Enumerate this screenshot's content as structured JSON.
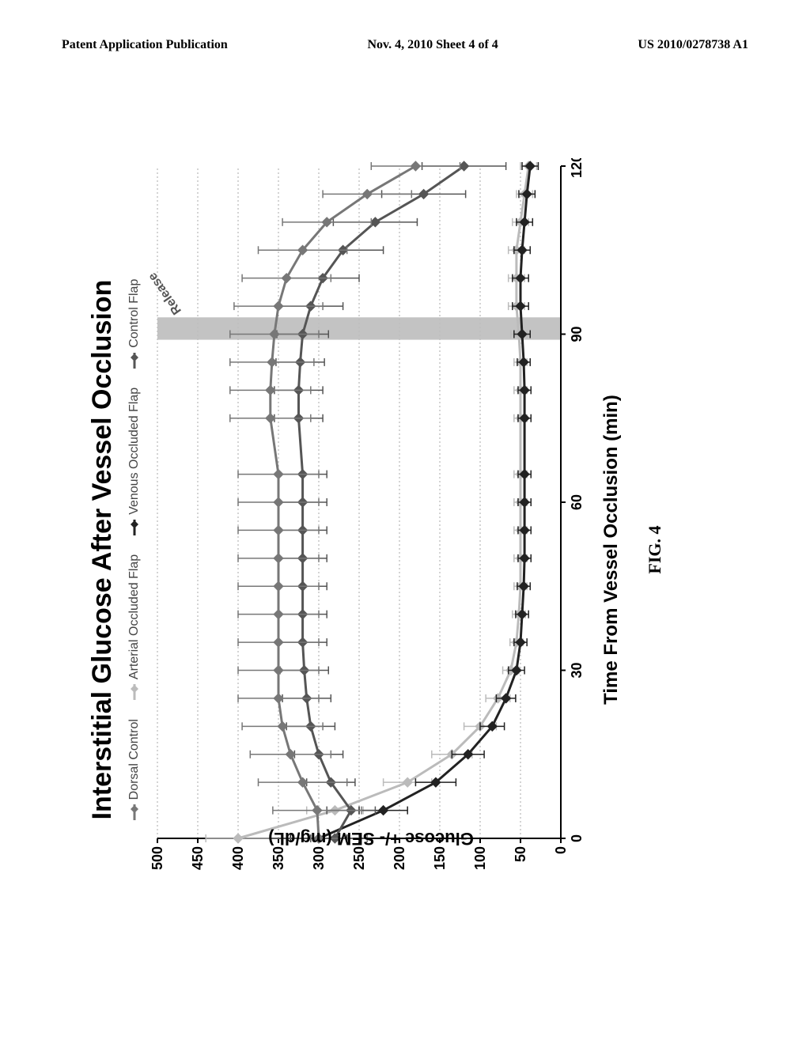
{
  "header": {
    "left": "Patent Application Publication",
    "center": "Nov. 4, 2010  Sheet 4 of 4",
    "right": "US 2010/0278738 A1"
  },
  "figure": {
    "caption": "FIG. 4",
    "chart": {
      "type": "line",
      "title": "Interstitial Glucose After Vessel Occlusion",
      "x_label": "Time From Vessel Occlusion (min)",
      "y_label": "Glucose +/- SEM (mg/dL)",
      "xlim": [
        0,
        120
      ],
      "ylim": [
        0,
        500
      ],
      "xtick_step": 30,
      "ytick_step": 50,
      "background_color": "#ffffff",
      "grid_color": "#aaaaaa",
      "grid_dash": "2,3",
      "axis_color": "#000000",
      "tick_fontsize": 18,
      "title_fontsize": 34,
      "label_fontsize": 24,
      "release_bar": {
        "x_start": 89,
        "x_end": 93,
        "fill": "#bdbdbd",
        "label": "Release",
        "label_rot": -35
      },
      "legend": [
        {
          "key": "dorsal",
          "label": "Dorsal Control",
          "color": "#777777",
          "marker": "diamond"
        },
        {
          "key": "arterial",
          "label": "Arterial Occluded Flap",
          "color": "#bbbbbb",
          "marker": "diamond"
        },
        {
          "key": "venous",
          "label": "Venous Occluded Flap",
          "color": "#222222",
          "marker": "diamond"
        },
        {
          "key": "control",
          "label": "Control Flap",
          "color": "#555555",
          "marker": "diamond"
        }
      ],
      "series": {
        "dorsal": {
          "color": "#777777",
          "line_width": 3,
          "marker": "diamond",
          "marker_size": 8,
          "x": [
            0,
            5,
            10,
            15,
            20,
            25,
            30,
            35,
            40,
            45,
            50,
            55,
            60,
            65,
            75,
            80,
            85,
            90,
            95,
            100,
            105,
            110,
            115,
            120
          ],
          "y": [
            300,
            302,
            320,
            335,
            345,
            350,
            350,
            350,
            350,
            350,
            350,
            350,
            350,
            350,
            360,
            360,
            358,
            355,
            350,
            340,
            320,
            290,
            240,
            180
          ],
          "err": [
            60,
            55,
            55,
            50,
            50,
            50,
            50,
            50,
            50,
            50,
            50,
            50,
            50,
            50,
            50,
            50,
            52,
            55,
            55,
            55,
            55,
            55,
            55,
            55
          ]
        },
        "control": {
          "color": "#555555",
          "line_width": 3,
          "marker": "diamond",
          "marker_size": 8,
          "x": [
            0,
            5,
            10,
            15,
            20,
            25,
            30,
            35,
            40,
            45,
            50,
            55,
            60,
            65,
            75,
            80,
            85,
            90,
            95,
            100,
            105,
            110,
            115,
            120
          ],
          "y": [
            280,
            260,
            285,
            300,
            310,
            315,
            318,
            320,
            320,
            320,
            320,
            320,
            320,
            320,
            325,
            325,
            323,
            320,
            310,
            295,
            270,
            230,
            170,
            120
          ],
          "err": [
            30,
            30,
            30,
            30,
            30,
            30,
            30,
            30,
            30,
            30,
            30,
            30,
            30,
            30,
            30,
            30,
            30,
            32,
            40,
            45,
            50,
            52,
            52,
            52
          ]
        },
        "arterial": {
          "color": "#bbbbbb",
          "line_width": 3,
          "marker": "diamond",
          "marker_size": 8,
          "x": [
            0,
            5,
            10,
            15,
            20,
            25,
            30,
            35,
            40,
            45,
            50,
            55,
            60,
            65,
            75,
            80,
            85,
            90,
            95,
            100,
            105,
            110,
            115,
            120
          ],
          "y": [
            400,
            280,
            190,
            135,
            100,
            78,
            62,
            55,
            52,
            50,
            50,
            50,
            50,
            50,
            50,
            50,
            50,
            52,
            55,
            55,
            55,
            50,
            45,
            40
          ],
          "err": [
            40,
            35,
            30,
            25,
            20,
            15,
            10,
            8,
            8,
            8,
            8,
            8,
            8,
            8,
            8,
            8,
            8,
            10,
            10,
            10,
            10,
            10,
            10,
            10
          ]
        },
        "venous": {
          "color": "#222222",
          "line_width": 3,
          "marker": "diamond",
          "marker_size": 8,
          "x": [
            0,
            5,
            10,
            15,
            20,
            25,
            30,
            35,
            40,
            45,
            50,
            55,
            60,
            65,
            75,
            80,
            85,
            90,
            95,
            100,
            105,
            110,
            115,
            120
          ],
          "y": [
            300,
            220,
            155,
            115,
            85,
            68,
            55,
            50,
            48,
            46,
            45,
            45,
            45,
            45,
            45,
            45,
            46,
            48,
            50,
            50,
            48,
            45,
            42,
            38
          ],
          "err": [
            35,
            30,
            25,
            20,
            15,
            12,
            10,
            8,
            8,
            8,
            8,
            8,
            8,
            8,
            8,
            8,
            8,
            10,
            10,
            10,
            10,
            10,
            10,
            10
          ]
        }
      }
    }
  }
}
